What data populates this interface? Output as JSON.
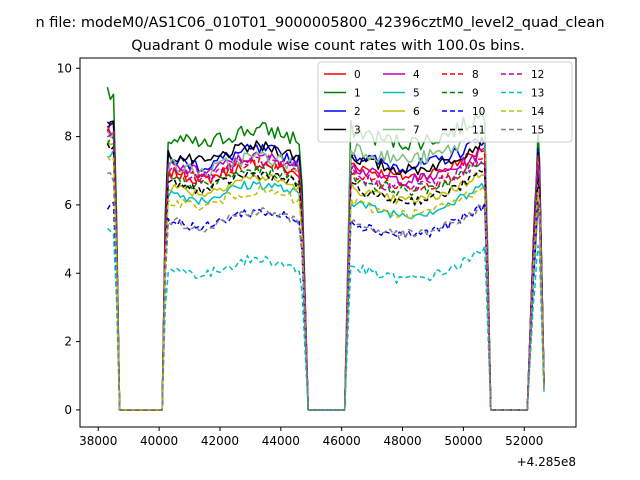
{
  "figure": {
    "suptitle": "n file: modeM0/AS1C06_010T01_9000005800_42396cztM0_level2_quad_clean",
    "title": "Quadrant 0 module wise count rates with 100.0s bins.",
    "offset_label": "+4.285e8"
  },
  "chart_data": {
    "type": "line",
    "title": "Quadrant 0 module wise count rates with 100.0s bins.",
    "xlabel": "",
    "ylabel": "",
    "x_offset": 428500000,
    "xlim": [
      37400,
      53700
    ],
    "ylim": [
      -0.5,
      10.3
    ],
    "xticks": [
      38000,
      40000,
      42000,
      44000,
      46000,
      48000,
      50000,
      52000
    ],
    "yticks": [
      0,
      2,
      4,
      6,
      8,
      10
    ],
    "grid": false,
    "legend": {
      "placement": "top-right",
      "columns": 4
    },
    "segments": [
      [
        38300,
        38700
      ],
      [
        40100,
        44900
      ],
      [
        46100,
        50900
      ],
      [
        52300,
        52650
      ]
    ],
    "gaps": [
      [
        38700,
        39900
      ],
      [
        44900,
        45900
      ],
      [
        50900,
        52100
      ]
    ],
    "series": [
      {
        "name": "0",
        "color": "#ff0000",
        "dash": false,
        "levels": [
          8.4,
          7.0,
          7.3,
          8.0
        ],
        "noise": 0.35
      },
      {
        "name": "1",
        "color": "#008000",
        "dash": false,
        "levels": [
          9.2,
          8.0,
          8.3,
          8.4
        ],
        "noise": 0.5
      },
      {
        "name": "2",
        "color": "#0000ff",
        "dash": false,
        "levels": [
          8.5,
          7.4,
          7.6,
          8.2
        ],
        "noise": 0.4
      },
      {
        "name": "3",
        "color": "#000000",
        "dash": false,
        "levels": [
          8.3,
          7.5,
          7.5,
          8.0
        ],
        "noise": 0.35
      },
      {
        "name": "4",
        "color": "#bf00bf",
        "dash": false,
        "levels": [
          8.2,
          7.2,
          7.2,
          7.9
        ],
        "noise": 0.35
      },
      {
        "name": "5",
        "color": "#00bfbf",
        "dash": false,
        "levels": [
          7.5,
          6.4,
          6.2,
          6.9
        ],
        "noise": 0.3
      },
      {
        "name": "6",
        "color": "#bfbf00",
        "dash": false,
        "levels": [
          7.8,
          6.6,
          6.6,
          7.0
        ],
        "noise": 0.3
      },
      {
        "name": "7",
        "color": "#7fbf7f",
        "dash": false,
        "levels": [
          8.0,
          7.2,
          7.8,
          7.6
        ],
        "noise": 0.45
      },
      {
        "name": "8",
        "color": "#ff0000",
        "dash": true,
        "levels": [
          8.1,
          7.0,
          7.0,
          7.7
        ],
        "noise": 0.35
      },
      {
        "name": "9",
        "color": "#008000",
        "dash": true,
        "levels": [
          7.9,
          6.8,
          6.9,
          7.5
        ],
        "noise": 0.35
      },
      {
        "name": "10",
        "color": "#0000ff",
        "dash": true,
        "levels": [
          6.0,
          5.6,
          5.6,
          6.4
        ],
        "noise": 0.3
      },
      {
        "name": "11",
        "color": "#000000",
        "dash": true,
        "levels": [
          7.7,
          6.7,
          6.6,
          7.3
        ],
        "noise": 0.3
      },
      {
        "name": "12",
        "color": "#bf00bf",
        "dash": true,
        "levels": [
          8.0,
          7.1,
          7.0,
          7.6
        ],
        "noise": 0.35
      },
      {
        "name": "13",
        "color": "#00bfbf",
        "dash": true,
        "levels": [
          5.2,
          4.2,
          4.3,
          5.2
        ],
        "noise": 0.3
      },
      {
        "name": "14",
        "color": "#bfbf00",
        "dash": true,
        "levels": [
          7.3,
          6.2,
          6.2,
          6.9
        ],
        "noise": 0.3
      },
      {
        "name": "15",
        "color": "#808080",
        "dash": true,
        "levels": [
          6.8,
          5.6,
          5.6,
          6.3
        ],
        "noise": 0.3
      }
    ]
  }
}
